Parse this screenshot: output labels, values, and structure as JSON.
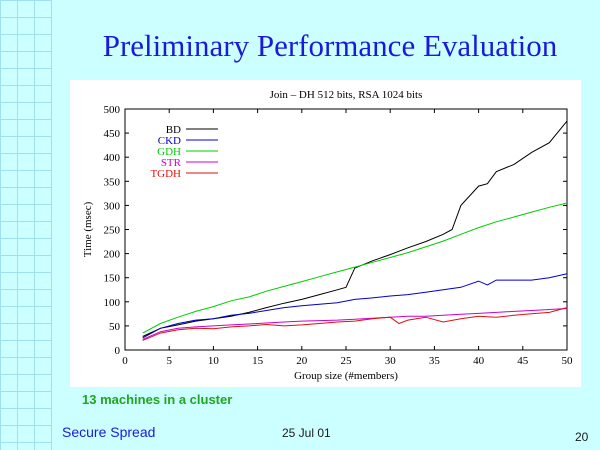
{
  "slide": {
    "title": "Preliminary Performance Evaluation",
    "caption": "13 machines in a cluster",
    "footer_left": "Secure Spread",
    "footer_date": "25 Jul 01",
    "page_number": "20",
    "colors": {
      "background": "#ccffff",
      "grid": "#9fe0f0",
      "title": "#1a1adc",
      "caption": "#1ea61e"
    }
  },
  "chart_data": {
    "type": "line",
    "title": "Join – DH 512 bits, RSA 1024 bits",
    "xlabel": "Group size (#members)",
    "ylabel": "Time (msec)",
    "xlim": [
      0,
      50
    ],
    "ylim": [
      0,
      500
    ],
    "xticks": [
      0,
      5,
      10,
      15,
      20,
      25,
      30,
      35,
      40,
      45,
      50
    ],
    "yticks": [
      0,
      50,
      100,
      150,
      200,
      250,
      300,
      350,
      400,
      450,
      500
    ],
    "legend_position": "top-left",
    "grid": false,
    "series": [
      {
        "name": "BD",
        "color": "#000000",
        "x": [
          2,
          4,
          6,
          8,
          10,
          12,
          14,
          16,
          18,
          20,
          22,
          24,
          25,
          26,
          28,
          30,
          32,
          34,
          36,
          37,
          38,
          40,
          41,
          42,
          44,
          46,
          48,
          50
        ],
        "y": [
          28,
          45,
          52,
          60,
          65,
          70,
          78,
          88,
          97,
          105,
          115,
          125,
          130,
          170,
          185,
          198,
          212,
          225,
          240,
          250,
          300,
          340,
          345,
          370,
          385,
          410,
          430,
          475
        ]
      },
      {
        "name": "CKD",
        "color": "#0000cc",
        "x": [
          2,
          4,
          6,
          8,
          10,
          12,
          14,
          16,
          18,
          20,
          22,
          24,
          26,
          28,
          30,
          32,
          34,
          36,
          38,
          40,
          41,
          42,
          44,
          46,
          48,
          50
        ],
        "y": [
          25,
          45,
          55,
          62,
          65,
          72,
          76,
          82,
          88,
          92,
          95,
          98,
          105,
          108,
          112,
          115,
          120,
          125,
          130,
          143,
          135,
          145,
          145,
          145,
          150,
          158
        ]
      },
      {
        "name": "GDH",
        "color": "#00cc00",
        "x": [
          2,
          4,
          6,
          8,
          10,
          12,
          14,
          16,
          18,
          20,
          22,
          24,
          26,
          28,
          30,
          32,
          34,
          36,
          38,
          40,
          42,
          44,
          46,
          48,
          50
        ],
        "y": [
          35,
          55,
          68,
          80,
          90,
          102,
          110,
          122,
          132,
          142,
          152,
          162,
          172,
          182,
          192,
          202,
          214,
          226,
          240,
          254,
          266,
          276,
          286,
          296,
          305
        ]
      },
      {
        "name": "STR",
        "color": "#cc00cc",
        "x": [
          2,
          4,
          6,
          8,
          10,
          12,
          14,
          16,
          18,
          20,
          22,
          24,
          26,
          28,
          30,
          32,
          34,
          36,
          38,
          40,
          42,
          44,
          46,
          48,
          50
        ],
        "y": [
          22,
          38,
          45,
          48,
          50,
          52,
          54,
          56,
          58,
          60,
          61,
          62,
          64,
          66,
          68,
          70,
          70,
          72,
          74,
          76,
          78,
          80,
          82,
          84,
          86
        ]
      },
      {
        "name": "TGDH",
        "color": "#dd1111",
        "x": [
          2,
          4,
          6,
          8,
          10,
          12,
          14,
          16,
          18,
          20,
          22,
          24,
          26,
          28,
          30,
          31,
          32,
          34,
          36,
          38,
          40,
          42,
          44,
          46,
          48,
          50
        ],
        "y": [
          20,
          35,
          42,
          45,
          44,
          48,
          50,
          53,
          50,
          52,
          55,
          58,
          60,
          65,
          68,
          55,
          62,
          68,
          58,
          65,
          70,
          68,
          72,
          75,
          78,
          88
        ]
      }
    ]
  }
}
